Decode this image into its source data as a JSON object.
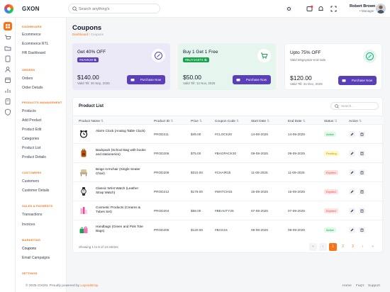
{
  "app": {
    "brand": "GXON"
  },
  "search": {
    "placeholder": "Search anything's"
  },
  "user": {
    "name": "Robert Brown",
    "role": "Manager"
  },
  "sidebar": {
    "sections": [
      {
        "title": "DASHBOARD",
        "items": [
          "Ecommerce",
          "Ecommerce RTL",
          "HR Dashboard"
        ]
      },
      {
        "title": "ORDERS",
        "items": [
          "Orders",
          "Order Details"
        ]
      },
      {
        "title": "PRODUCTS MANAGEMENT",
        "items": [
          "Products",
          "Add Product",
          "Product Edit",
          "Categories",
          "Product List",
          "Product Details"
        ]
      },
      {
        "title": "CUSTOMERS",
        "items": [
          "Customers",
          "Customer Details"
        ]
      },
      {
        "title": "SALES & PAYMENTS",
        "items": [
          "Transactions",
          "Invoices"
        ]
      },
      {
        "title": "MARKETING",
        "items": [
          "Coupons",
          "Email Campaigns"
        ]
      },
      {
        "title": "SETTINGS",
        "items": []
      }
    ]
  },
  "page": {
    "title": "Coupons",
    "breadcrumb": {
      "parent": "Dashboard",
      "separator": "/",
      "current": "Coupons"
    }
  },
  "cards": [
    {
      "title": "Get 40% OFF",
      "code": "#SAVE20",
      "price": "$140.00",
      "valid": "Valid Till: 30 Sep, 2025",
      "button": "Purchase Now",
      "bg": "#ebe8f7",
      "accent": "#5b3fb8"
    },
    {
      "title": "Buy 1 Get 1 Free",
      "code": "#BUY1GET1",
      "price": "$50.00",
      "valid": "Valid Till: 12 Nov, 2025",
      "button": "Purchase Now",
      "bg": "#e6f6ee",
      "accent": "#16a34a"
    },
    {
      "title": "Upto 75% OFF",
      "desc": "Valid Msgsystar-end-sale.",
      "price": "$120.00",
      "valid": "Valid Till: 31 Dec, 2025",
      "button": "Purchase Now",
      "bg": "#ffffff",
      "accent": "#10b981"
    }
  ],
  "table": {
    "title": "Product List",
    "search_placeholder": "Search...",
    "columns": [
      "Product Name",
      "Product ID",
      "Price",
      "Coupon Code",
      "Start Date",
      "End Date",
      "Status",
      "Action"
    ],
    "rows": [
      {
        "name": "Alarm Clock (Analog Table Clock)",
        "id": "PROD211",
        "price": "$49.00",
        "code": "#CLOCK20",
        "start": "14-08-2025",
        "end": "14-09-2025",
        "status": "Active",
        "icon": "alarm-clock"
      },
      {
        "name": "Backpack (School Bag with books and stationeries)",
        "id": "PROD206",
        "price": "$75.00",
        "code": "#BAGPACK30",
        "start": "09-08-2025",
        "end": "09-09-2025",
        "status": "Pending",
        "icon": "backpack"
      },
      {
        "name": "Beige Armchair (Single Seater Chair)",
        "id": "PROD208",
        "price": "$310.00",
        "code": "#CHAIR15",
        "start": "11-08-2025",
        "end": "11-09-2025",
        "status": "Expired",
        "icon": "armchair"
      },
      {
        "name": "Classic Wrist Watch (Leather Strap Watch)",
        "id": "PROD212",
        "price": "$179.00",
        "code": "#WATCH15",
        "start": "15-08-2025",
        "end": "15-09-2025",
        "status": "Expired",
        "icon": "wrist-watch"
      },
      {
        "name": "Cosmetic Products (Creams & Tubes Set)",
        "id": "PROD204",
        "price": "$58.00",
        "code": "#BEAUTY25",
        "start": "07-08-2025",
        "end": "07-09-2025",
        "status": "Expired",
        "icon": "cosmetics"
      },
      {
        "name": "Handbags (Green and Pink Tote Bags)",
        "id": "PROD205",
        "price": "$120.00",
        "code": "#BAG15",
        "start": "08-08-2025",
        "end": "08-09-2025",
        "status": "Active",
        "icon": "handbags"
      }
    ],
    "footer_info": "Showing 1 to 6 of 13 entries",
    "pagination": {
      "pages": [
        "1",
        "2",
        "3"
      ],
      "current": "1"
    }
  },
  "status_colors": {
    "Active": {
      "bg": "#dcfce7",
      "fg": "#16a34a"
    },
    "Pending": {
      "bg": "#fef9c3",
      "fg": "#ca8a04"
    },
    "Expired": {
      "bg": "#fee2e2",
      "fg": "#ef4444"
    }
  },
  "footer": {
    "copyright": "© 2025 GXON. Proudly powered by",
    "company": "LayoutDrop.",
    "links": [
      "Home",
      "Faq's",
      "Support"
    ]
  },
  "colors": {
    "accent": "#f97316",
    "primary": "#5b3fb8"
  }
}
